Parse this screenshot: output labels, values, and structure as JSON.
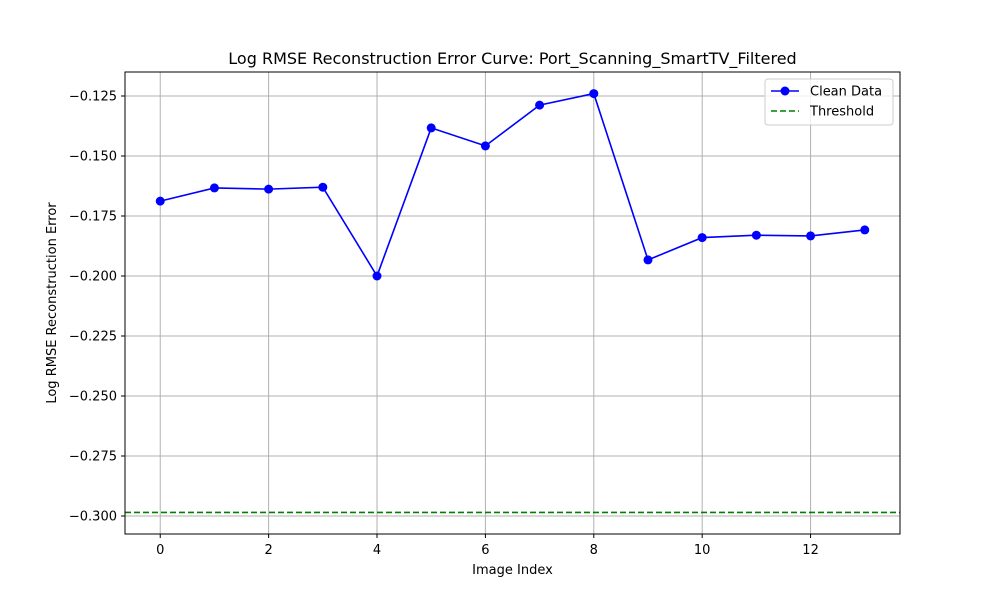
{
  "chart_data": {
    "type": "line",
    "title": "Log RMSE Reconstruction Error Curve: Port_Scanning_SmartTV_Filtered",
    "xlabel": "Image Index",
    "ylabel": "Log RMSE Reconstruction Error",
    "xlim": [
      -0.65,
      13.65
    ],
    "ylim": [
      -0.3075,
      -0.115
    ],
    "xticks": [
      0,
      2,
      4,
      6,
      8,
      10,
      12
    ],
    "xtick_labels": [
      "0",
      "2",
      "4",
      "6",
      "8",
      "10",
      "12"
    ],
    "yticks": [
      -0.125,
      -0.15,
      -0.175,
      -0.2,
      -0.225,
      -0.25,
      -0.275,
      -0.3
    ],
    "ytick_labels": [
      "−0.125",
      "−0.150",
      "−0.175",
      "−0.200",
      "−0.225",
      "−0.250",
      "−0.275",
      "−0.300"
    ],
    "grid": true,
    "legend_position": "top-right",
    "series": [
      {
        "name": "Clean Data",
        "style": "solid-line-circle-markers",
        "color": "#0000ff",
        "x": [
          0,
          1,
          2,
          3,
          4,
          5,
          6,
          7,
          8,
          9,
          10,
          11,
          12,
          13
        ],
        "y": [
          -0.1688,
          -0.1633,
          -0.1638,
          -0.163,
          -0.2,
          -0.1383,
          -0.1458,
          -0.1288,
          -0.124,
          -0.1933,
          -0.184,
          -0.183,
          -0.1833,
          -0.1808
        ]
      },
      {
        "name": "Threshold",
        "style": "dashed-horizontal-line",
        "color": "#008000",
        "y": -0.2985
      }
    ]
  }
}
